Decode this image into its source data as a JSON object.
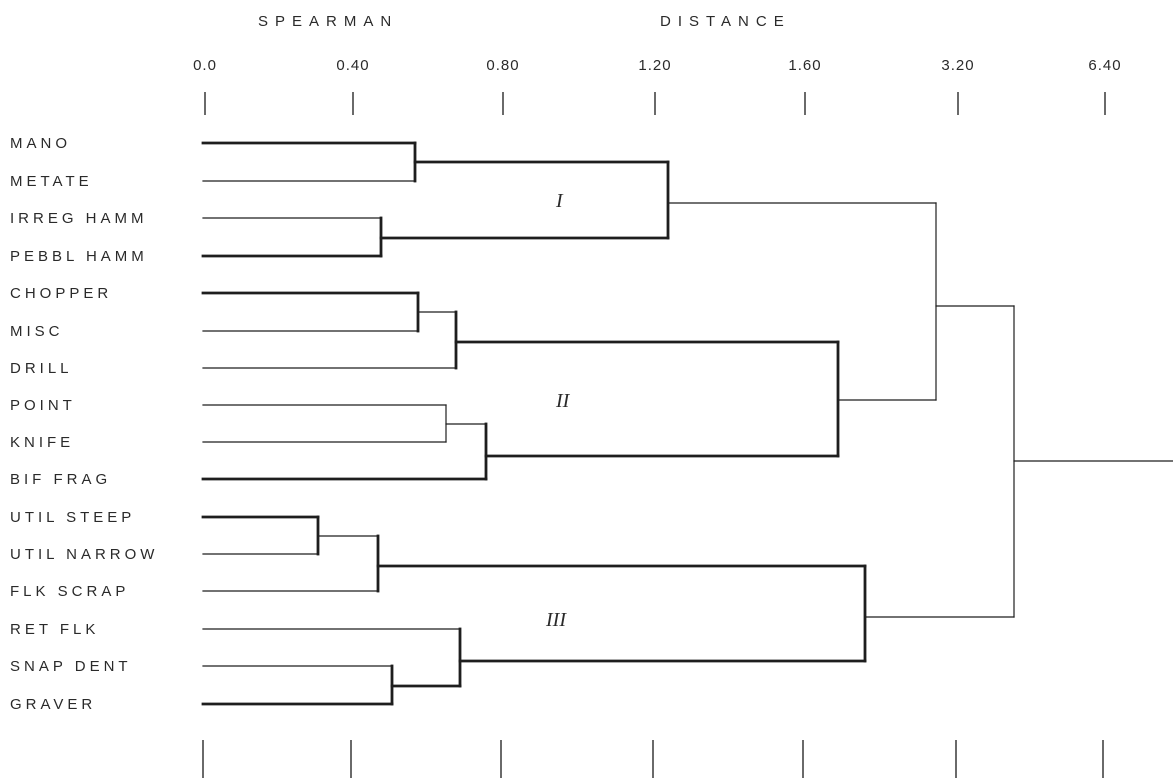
{
  "title_left": "SPEARMAN",
  "title_right": "DISTANCE",
  "axis_ticks": [
    "0.0",
    "0.40",
    "0.80",
    "1.20",
    "1.60",
    "3.20",
    "6.40"
  ],
  "leaves": [
    "MANO",
    "METATE",
    "IRREG HAMM",
    "PEBBL HAMM",
    "CHOPPER",
    "MISC",
    "DRILL",
    "POINT",
    "KNIFE",
    "BIF FRAG",
    "UTIL STEEP",
    "UTIL NARROW",
    "FLK SCRAP",
    "RET FLK",
    "SNAP DENT",
    "GRAVER"
  ],
  "cluster_labels": [
    "I",
    "II",
    "III"
  ],
  "chart_data": {
    "type": "dendrogram",
    "xlabel": "SPEARMAN DISTANCE",
    "tick_labels": [
      "0.0",
      "0.40",
      "0.80",
      "1.20",
      "1.60",
      "3.20",
      "6.40"
    ],
    "merges": [
      {
        "left": "MANO",
        "right": "METATE",
        "height": 0.56
      },
      {
        "left": "IRREG HAMM",
        "right": "PEBBL HAMM",
        "height": 0.48
      },
      {
        "left": "MANO+METATE",
        "right": "IRREG HAMM+PEBBL HAMM",
        "height": 1.25,
        "cluster": "I"
      },
      {
        "left": "CHOPPER",
        "right": "MISC",
        "height": 0.58
      },
      {
        "left": "CHOPPER+MISC",
        "right": "DRILL",
        "height": 0.68
      },
      {
        "left": "POINT",
        "right": "KNIFE",
        "height": 0.66
      },
      {
        "left": "POINT+KNIFE",
        "right": "BIF FRAG",
        "height": 0.76
      },
      {
        "left": "CHOPPER+MISC+DRILL",
        "right": "POINT+KNIFE+BIF FRAG",
        "height": 1.7,
        "cluster": "II"
      },
      {
        "left": "UTIL STEEP",
        "right": "UTIL NARROW",
        "height": 0.32
      },
      {
        "left": "UTIL STEEP+UTIL NARROW",
        "right": "FLK SCRAP",
        "height": 0.47
      },
      {
        "left": "SNAP DENT",
        "right": "GRAVER",
        "height": 0.52
      },
      {
        "left": "SNAP DENT+GRAVER",
        "right": "RET FLK",
        "height": 0.7
      },
      {
        "left": "UTIL STEEP+UTIL NARROW+FLK SCRAP",
        "right": "RET FLK+SNAP DENT+GRAVER",
        "height": 1.78,
        "cluster": "III"
      },
      {
        "left": "I",
        "right": "II",
        "height": 3.1
      },
      {
        "left": "I+II",
        "right": "III",
        "height": 3.8
      },
      {
        "left": "I+II+III",
        "right": "",
        "height": 6.4
      }
    ],
    "grid": false
  }
}
